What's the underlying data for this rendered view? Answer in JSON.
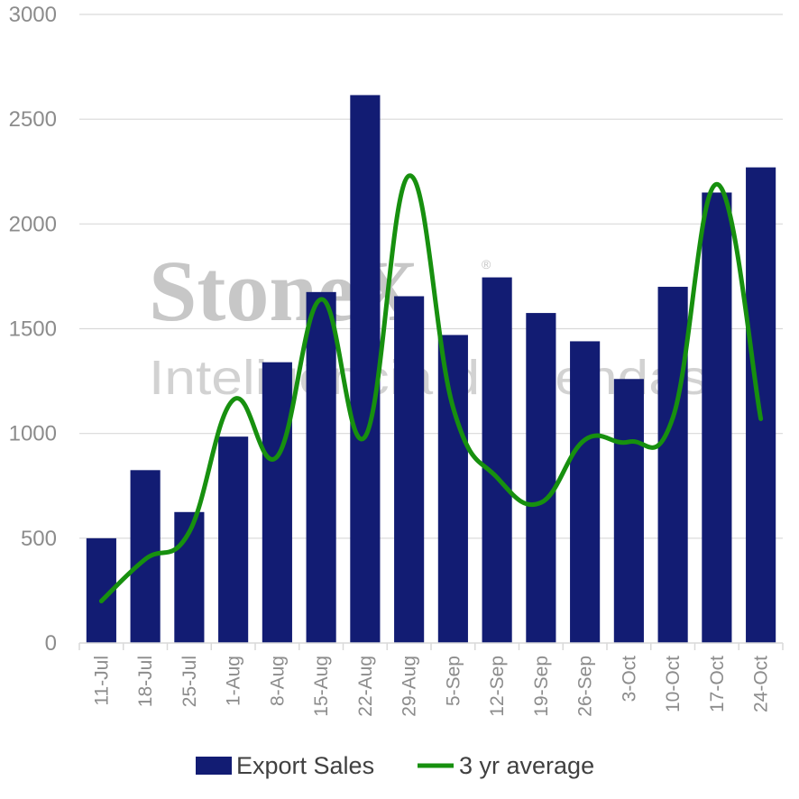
{
  "chart_data": {
    "type": "bar",
    "categories": [
      "11-Jul",
      "18-Jul",
      "25-Jul",
      "1-Aug",
      "8-Aug",
      "15-Aug",
      "22-Aug",
      "29-Aug",
      "5-Sep",
      "12-Sep",
      "19-Sep",
      "26-Sep",
      "3-Oct",
      "10-Oct",
      "17-Oct",
      "24-Oct"
    ],
    "series": [
      {
        "name": "Export Sales",
        "type": "bar",
        "color": "#121c73",
        "values": [
          500,
          825,
          625,
          985,
          1340,
          1675,
          2615,
          1655,
          1470,
          1745,
          1575,
          1440,
          1260,
          1700,
          2150,
          2270
        ]
      },
      {
        "name": "3 yr average",
        "type": "line",
        "smooth": true,
        "color": "#17900f",
        "values": [
          200,
          400,
          530,
          1160,
          890,
          1640,
          985,
          2230,
          1125,
          790,
          670,
          970,
          960,
          1075,
          2190,
          1070
        ]
      }
    ],
    "ylim": [
      0,
      3000
    ],
    "yticks": [
      0,
      500,
      1000,
      1500,
      2000,
      2500,
      3000
    ],
    "grid": true,
    "legend": "bottom",
    "title": "",
    "xlabel": "",
    "ylabel": ""
  },
  "watermark": {
    "brand": "StoneX",
    "registered": "®",
    "tagline": "Inteligência de vendas"
  }
}
